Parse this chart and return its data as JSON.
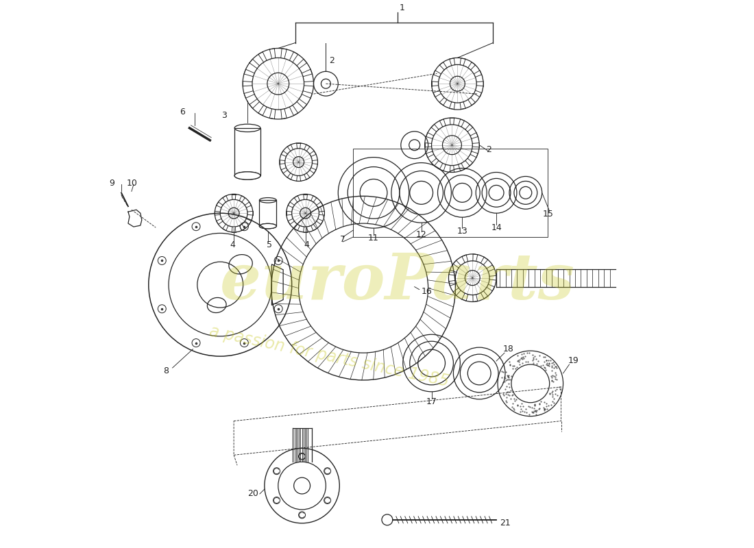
{
  "background_color": "#ffffff",
  "line_color": "#222222",
  "watermark_color1": "#c8c820",
  "watermark_color2": "#c8c820",
  "watermark_alpha": 0.3,
  "fig_width": 11.0,
  "fig_height": 8.0,
  "dpi": 100
}
